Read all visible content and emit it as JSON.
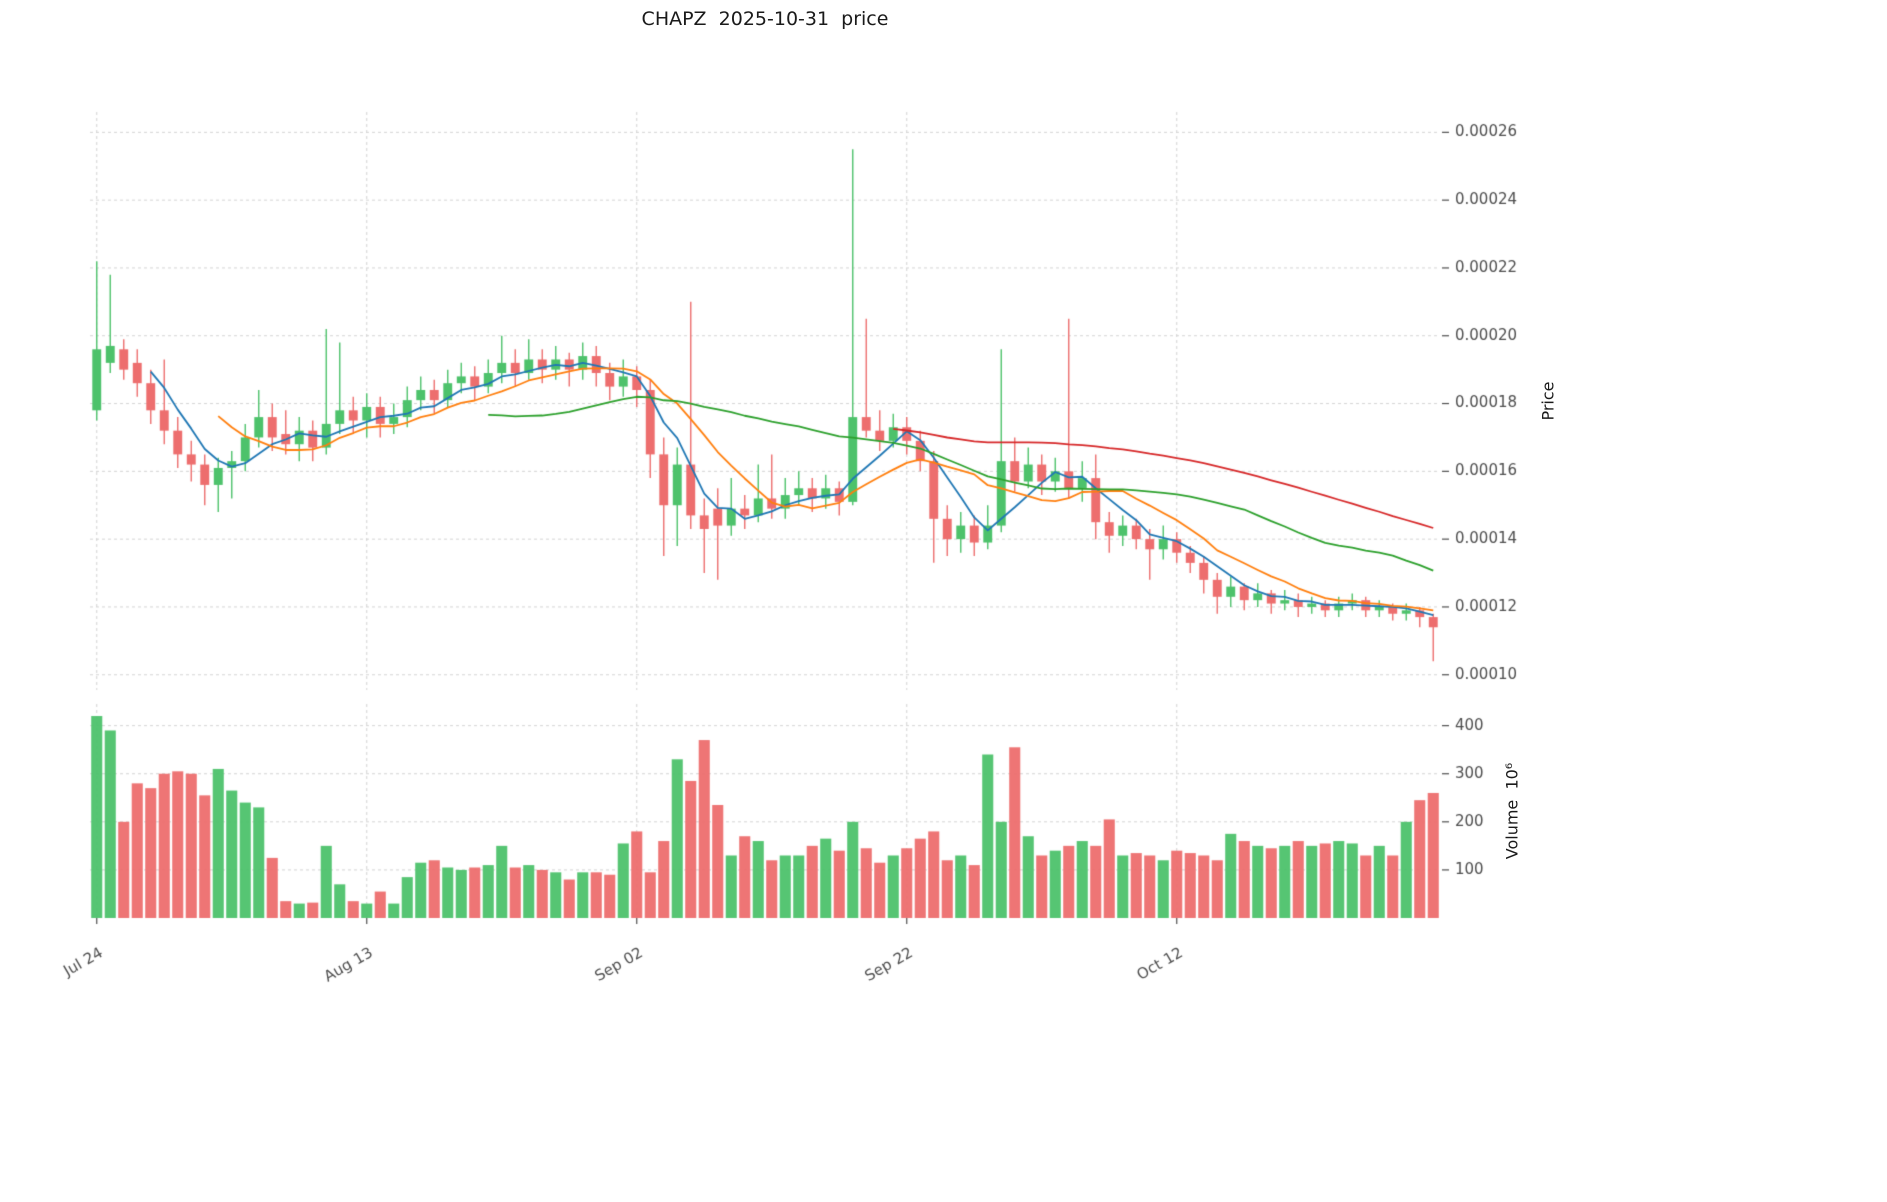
{
  "title": "CHAPZ  2025-10-31  price",
  "chart_data": {
    "type": "candlestick",
    "panels": [
      "price",
      "volume"
    ],
    "title": "CHAPZ  2025-10-31  price",
    "price_axis": {
      "label": "Price",
      "side": "right",
      "ticks": [
        0.0001,
        0.00012,
        0.00014,
        0.00016,
        0.00018,
        0.0002,
        0.00022,
        0.00024,
        0.00026
      ],
      "range": [
        9.55e-05,
        0.000266
      ],
      "tick_format_decimals": 5
    },
    "volume_axis": {
      "label": "Volume  10⁶",
      "side": "right",
      "ticks": [
        100,
        200,
        300,
        400
      ],
      "range": [
        0,
        445
      ]
    },
    "x_ticks": [
      {
        "i": 0,
        "label": "Jul 24"
      },
      {
        "i": 20,
        "label": "Aug 13"
      },
      {
        "i": 40,
        "label": "Sep 02"
      },
      {
        "i": 60,
        "label": "Sep 22"
      },
      {
        "i": 80,
        "label": "Oct 12"
      }
    ],
    "grid": true,
    "moving_averages": [
      {
        "window": 5,
        "color": "#1f77b4"
      },
      {
        "window": 10,
        "color": "#ff7f0e"
      },
      {
        "window": 30,
        "color": "#2ca02c"
      },
      {
        "window": 60,
        "color": "#d62728"
      }
    ],
    "colors": {
      "up": "#4dc26b",
      "down": "#ed6e6e",
      "grid": "#d4d4d4",
      "tick_text": "#4d4d4d"
    },
    "ohlcv_columns": [
      "open",
      "high",
      "low",
      "close",
      "volume_millions"
    ],
    "ohlcv": [
      [
        0.000178,
        0.000222,
        0.000175,
        0.000196,
        420
      ],
      [
        0.000192,
        0.000218,
        0.000189,
        0.000197,
        390
      ],
      [
        0.000196,
        0.000199,
        0.000187,
        0.00019,
        200
      ],
      [
        0.000192,
        0.000196,
        0.000182,
        0.000186,
        280
      ],
      [
        0.000186,
        0.00019,
        0.000174,
        0.000178,
        270
      ],
      [
        0.000178,
        0.000193,
        0.000168,
        0.000172,
        300
      ],
      [
        0.000172,
        0.000176,
        0.000161,
        0.000165,
        305
      ],
      [
        0.000165,
        0.000169,
        0.000157,
        0.000162,
        300
      ],
      [
        0.000162,
        0.000165,
        0.00015,
        0.000156,
        255
      ],
      [
        0.000156,
        0.000164,
        0.000148,
        0.000161,
        310
      ],
      [
        0.000161,
        0.000166,
        0.000152,
        0.000163,
        265
      ],
      [
        0.000163,
        0.000174,
        0.00016,
        0.00017,
        240
      ],
      [
        0.00017,
        0.000184,
        0.000167,
        0.000176,
        230
      ],
      [
        0.000176,
        0.00018,
        0.000166,
        0.00017,
        125
      ],
      [
        0.000171,
        0.000178,
        0.000165,
        0.000168,
        35
      ],
      [
        0.000168,
        0.000176,
        0.000163,
        0.000172,
        30
      ],
      [
        0.000172,
        0.000175,
        0.000163,
        0.000167,
        32
      ],
      [
        0.000167,
        0.000202,
        0.000165,
        0.000174,
        150
      ],
      [
        0.000174,
        0.000198,
        0.000171,
        0.000178,
        70
      ],
      [
        0.000178,
        0.000182,
        0.000171,
        0.000175,
        35
      ],
      [
        0.000175,
        0.000183,
        0.00017,
        0.000179,
        30
      ],
      [
        0.000179,
        0.000182,
        0.00017,
        0.000174,
        55
      ],
      [
        0.000174,
        0.00018,
        0.000171,
        0.000176,
        30
      ],
      [
        0.000176,
        0.000185,
        0.000173,
        0.000181,
        85
      ],
      [
        0.000181,
        0.000188,
        0.000178,
        0.000184,
        115
      ],
      [
        0.000184,
        0.000187,
        0.000177,
        0.000181,
        120
      ],
      [
        0.000181,
        0.00019,
        0.000179,
        0.000186,
        105
      ],
      [
        0.000186,
        0.000192,
        0.000183,
        0.000188,
        100
      ],
      [
        0.000188,
        0.000191,
        0.000181,
        0.000185,
        105
      ],
      [
        0.000185,
        0.000193,
        0.000183,
        0.000189,
        110
      ],
      [
        0.000189,
        0.0002,
        0.000186,
        0.000192,
        150
      ],
      [
        0.000192,
        0.000196,
        0.000185,
        0.000189,
        105
      ],
      [
        0.000189,
        0.000199,
        0.000187,
        0.000193,
        110
      ],
      [
        0.000193,
        0.000196,
        0.000186,
        0.00019,
        100
      ],
      [
        0.00019,
        0.000197,
        0.000187,
        0.000193,
        95
      ],
      [
        0.000193,
        0.000195,
        0.000185,
        0.00019,
        80
      ],
      [
        0.00019,
        0.000198,
        0.000187,
        0.000194,
        95
      ],
      [
        0.000194,
        0.000197,
        0.000185,
        0.000189,
        95
      ],
      [
        0.000189,
        0.000192,
        0.000181,
        0.000185,
        90
      ],
      [
        0.000185,
        0.000193,
        0.000182,
        0.000188,
        155
      ],
      [
        0.000188,
        0.000191,
        0.000179,
        0.000184,
        180
      ],
      [
        0.000184,
        0.000187,
        0.000158,
        0.000165,
        95
      ],
      [
        0.000165,
        0.00017,
        0.000135,
        0.00015,
        160
      ],
      [
        0.00015,
        0.000167,
        0.000138,
        0.000162,
        330
      ],
      [
        0.000162,
        0.00021,
        0.000143,
        0.000147,
        285
      ],
      [
        0.000147,
        0.000152,
        0.00013,
        0.000143,
        370
      ],
      [
        0.000149,
        0.000155,
        0.000128,
        0.000144,
        235
      ],
      [
        0.000144,
        0.000158,
        0.000141,
        0.000149,
        130
      ],
      [
        0.000149,
        0.000153,
        0.000143,
        0.000147,
        170
      ],
      [
        0.000147,
        0.000162,
        0.000145,
        0.000152,
        160
      ],
      [
        0.000152,
        0.000165,
        0.000146,
        0.000149,
        120
      ],
      [
        0.000149,
        0.000158,
        0.000146,
        0.000153,
        130
      ],
      [
        0.000153,
        0.00016,
        0.00015,
        0.000155,
        130
      ],
      [
        0.000155,
        0.000158,
        0.000148,
        0.000152,
        150
      ],
      [
        0.000152,
        0.000159,
        0.000149,
        0.000155,
        165
      ],
      [
        0.000155,
        0.000157,
        0.000147,
        0.000151,
        140
      ],
      [
        0.000151,
        0.000255,
        0.00015,
        0.000176,
        200
      ],
      [
        0.000176,
        0.000205,
        0.00017,
        0.000172,
        145
      ],
      [
        0.000172,
        0.000178,
        0.000166,
        0.000169,
        115
      ],
      [
        0.000169,
        0.000177,
        0.000167,
        0.000173,
        130
      ],
      [
        0.000173,
        0.000176,
        0.000165,
        0.000169,
        145
      ],
      [
        0.000169,
        0.000172,
        0.00016,
        0.000163,
        165
      ],
      [
        0.000163,
        0.000166,
        0.000133,
        0.000146,
        180
      ],
      [
        0.000146,
        0.00015,
        0.000135,
        0.00014,
        120
      ],
      [
        0.00014,
        0.000148,
        0.000136,
        0.000144,
        130
      ],
      [
        0.000144,
        0.000147,
        0.000135,
        0.000139,
        110
      ],
      [
        0.000139,
        0.00015,
        0.000137,
        0.000144,
        340
      ],
      [
        0.000144,
        0.000196,
        0.000142,
        0.000163,
        200
      ],
      [
        0.000163,
        0.00017,
        0.000154,
        0.000157,
        355
      ],
      [
        0.000157,
        0.000167,
        0.000155,
        0.000162,
        170
      ],
      [
        0.000162,
        0.000165,
        0.000153,
        0.000157,
        130
      ],
      [
        0.000157,
        0.000164,
        0.000154,
        0.00016,
        140
      ],
      [
        0.00016,
        0.000205,
        0.000152,
        0.000155,
        150
      ],
      [
        0.000155,
        0.000163,
        0.000151,
        0.000158,
        160
      ],
      [
        0.000158,
        0.000165,
        0.00014,
        0.000145,
        150
      ],
      [
        0.000145,
        0.000148,
        0.000136,
        0.000141,
        205
      ],
      [
        0.000141,
        0.000147,
        0.000138,
        0.000144,
        130
      ],
      [
        0.000144,
        0.000146,
        0.000137,
        0.00014,
        135
      ],
      [
        0.00014,
        0.000143,
        0.000128,
        0.000137,
        130
      ],
      [
        0.000137,
        0.000144,
        0.000134,
        0.00014,
        120
      ],
      [
        0.00014,
        0.000142,
        0.000133,
        0.000136,
        140
      ],
      [
        0.000136,
        0.000138,
        0.00013,
        0.000133,
        135
      ],
      [
        0.000133,
        0.000135,
        0.000124,
        0.000128,
        130
      ],
      [
        0.000128,
        0.00013,
        0.000118,
        0.000123,
        120
      ],
      [
        0.000123,
        0.000129,
        0.00012,
        0.000126,
        175
      ],
      [
        0.000126,
        0.000127,
        0.000119,
        0.000122,
        160
      ],
      [
        0.000122,
        0.000127,
        0.00012,
        0.000124,
        150
      ],
      [
        0.000124,
        0.000125,
        0.000118,
        0.000121,
        145
      ],
      [
        0.000121,
        0.000125,
        0.000119,
        0.000122,
        150
      ],
      [
        0.000122,
        0.000124,
        0.000117,
        0.00012,
        160
      ],
      [
        0.00012,
        0.000123,
        0.000118,
        0.000121,
        150
      ],
      [
        0.000121,
        0.000122,
        0.000117,
        0.000119,
        155
      ],
      [
        0.000119,
        0.000123,
        0.000117,
        0.000121,
        160
      ],
      [
        0.000121,
        0.000124,
        0.000119,
        0.000122,
        155
      ],
      [
        0.000122,
        0.000123,
        0.000117,
        0.000119,
        130
      ],
      [
        0.000119,
        0.000122,
        0.000117,
        0.00012,
        150
      ],
      [
        0.00012,
        0.000121,
        0.000116,
        0.000118,
        130
      ],
      [
        0.000118,
        0.000121,
        0.000116,
        0.000119,
        200
      ],
      [
        0.000119,
        0.00012,
        0.000114,
        0.000117,
        245
      ],
      [
        0.000117,
        0.000118,
        0.000104,
        0.000114,
        260
      ]
    ]
  }
}
